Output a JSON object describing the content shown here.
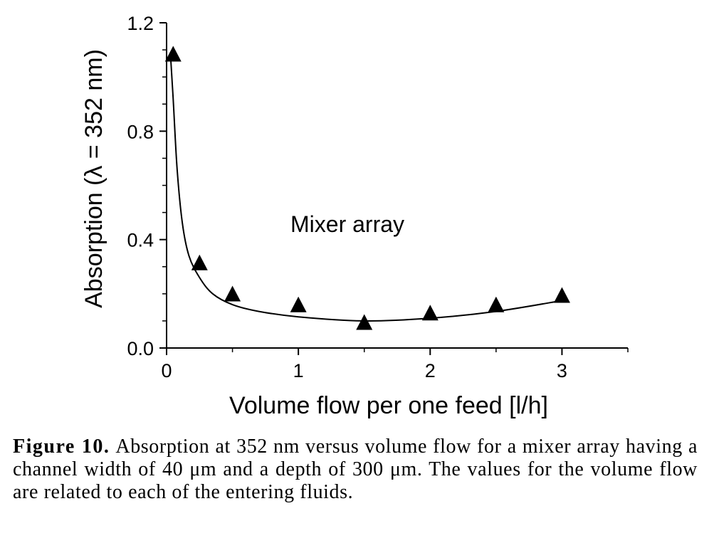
{
  "chart_data": {
    "type": "scatter",
    "xlabel": "Volume flow per one feed  [l/h]",
    "ylabel": "Absorption (λ = 352 nm)",
    "xlim": [
      0,
      3.5
    ],
    "ylim": [
      0,
      1.2
    ],
    "x_ticks": [
      0,
      1,
      2,
      3
    ],
    "x_tick_labels": [
      "0",
      "1",
      "2",
      "3"
    ],
    "y_ticks": [
      0.0,
      0.4,
      0.8,
      1.2
    ],
    "y_tick_labels": [
      "0.0",
      "0.4",
      "0.8",
      "1.2"
    ],
    "grid": false,
    "annotation": "Mixer array",
    "series": [
      {
        "marker": "triangle",
        "x": [
          0.05,
          0.25,
          0.5,
          1.0,
          1.5,
          2.0,
          2.5,
          3.0
        ],
        "y": [
          1.08,
          0.31,
          0.195,
          0.155,
          0.09,
          0.125,
          0.155,
          0.19
        ]
      }
    ],
    "fit_curve": {
      "style": "smooth line",
      "x": [
        0.03,
        0.05,
        0.08,
        0.12,
        0.17,
        0.25,
        0.35,
        0.5,
        0.7,
        1.0,
        1.5,
        2.0,
        2.5,
        3.0
      ],
      "y": [
        1.08,
        0.92,
        0.66,
        0.46,
        0.34,
        0.26,
        0.2,
        0.16,
        0.135,
        0.115,
        0.1,
        0.11,
        0.135,
        0.175
      ]
    }
  },
  "caption": {
    "label": "Figure 10.",
    "text": "Absorption at 352 nm versus volume flow for a mixer array having a channel width of 40 μm and a depth of 300 μm. The values for the volume flow are related to each of the entering fluids."
  }
}
